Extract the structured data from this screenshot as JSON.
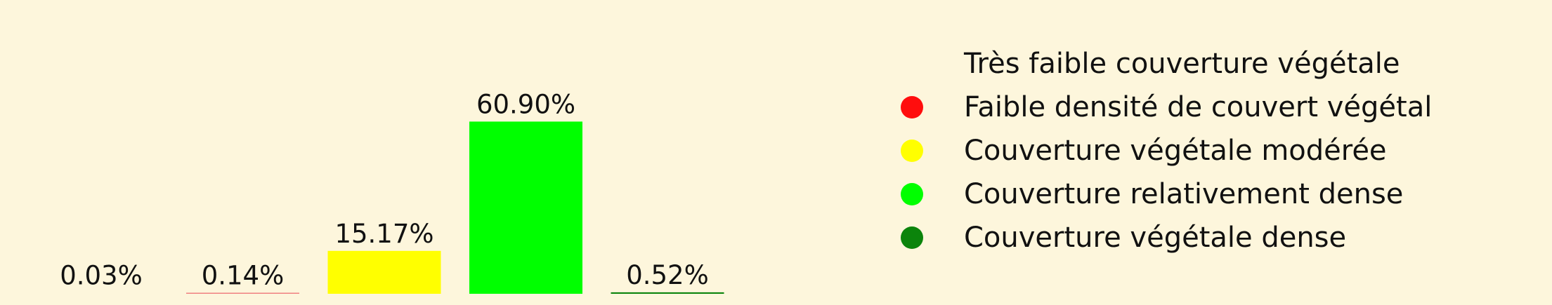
{
  "chart_data": {
    "type": "bar",
    "categories": [
      "Très faible couverture végétale",
      "Faible densité de couvert végétal",
      "Couverture végétale modérée",
      "Couverture relativement dense",
      "Couverture végétale dense"
    ],
    "values": [
      0.03,
      0.14,
      15.17,
      60.9,
      0.52
    ],
    "data_labels": [
      "0.03%",
      "0.14%",
      "15.17%",
      "60.90%",
      "0.52%"
    ],
    "colors": [
      "#fdf6dc",
      "#ff0d0d",
      "#ffff00",
      "#00ff00",
      "#0b840b"
    ],
    "title": "",
    "xlabel": "",
    "ylabel": "",
    "ylim": [
      0,
      61
    ],
    "grid": false,
    "axes_visible": false,
    "legend": {
      "placement": "right",
      "marker": "circle",
      "entries": [
        {
          "label": "Très faible couverture végétale",
          "color": "#fdf6dc"
        },
        {
          "label": "Faible densité de couvert végétal",
          "color": "#ff0d0d"
        },
        {
          "label": "Couverture végétale modérée",
          "color": "#ffff00"
        },
        {
          "label": "Couverture relativement dense",
          "color": "#00ff00"
        },
        {
          "label": "Couverture végétale dense",
          "color": "#0b840b"
        }
      ]
    }
  }
}
